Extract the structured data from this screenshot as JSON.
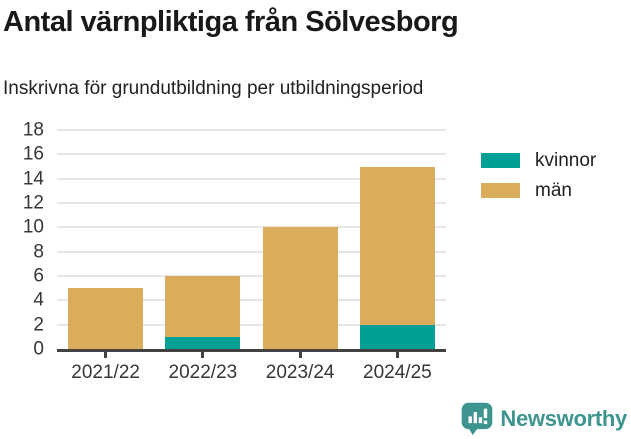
{
  "chart_data": {
    "type": "bar",
    "stacked": true,
    "title": "Antal värnpliktiga från Sölvesborg",
    "subtitle": "Inskrivna för grundutbildning per utbildningsperiod",
    "categories": [
      "2021/22",
      "2022/23",
      "2023/24",
      "2024/25"
    ],
    "series": [
      {
        "name": "kvinnor",
        "color": "#00a096",
        "values": [
          0,
          1,
          0,
          2
        ]
      },
      {
        "name": "män",
        "color": "#d9ad5c",
        "values": [
          5,
          5,
          10,
          13
        ]
      }
    ],
    "totals": [
      5,
      6,
      10,
      15
    ],
    "xlabel": "",
    "ylabel": "",
    "ylim": [
      0,
      18
    ],
    "yticks": [
      0,
      2,
      4,
      6,
      8,
      10,
      12,
      14,
      16,
      18
    ],
    "grid": "horizontal",
    "legend_position": "right-top"
  },
  "branding": {
    "name": "Newsworthy",
    "icon": "newsworthy-speech-bubble-chart-icon",
    "color": "#3e948e"
  },
  "colors": {
    "axis": "#424242",
    "gridline": "#e6e6e6",
    "tick_text": "#363636",
    "title_text": "#191919"
  }
}
